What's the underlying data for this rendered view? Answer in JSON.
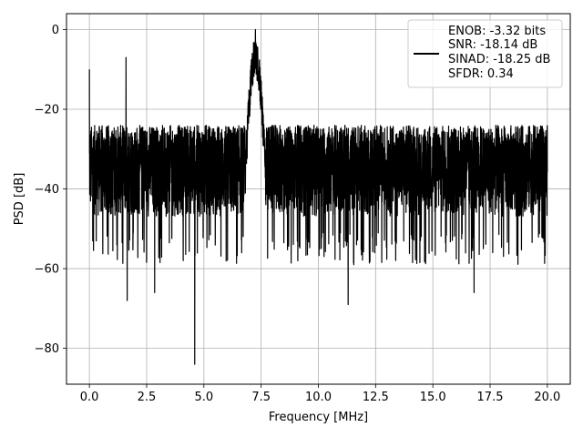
{
  "chart_data": {
    "type": "line",
    "xlabel": "Frequency [MHz]",
    "ylabel": "PSD [dB]",
    "xlim": [
      -1.0,
      21.0
    ],
    "ylim": [
      -89.0,
      4.0
    ],
    "x_ticks": [
      0.0,
      2.5,
      5.0,
      7.5,
      10.0,
      12.5,
      15.0,
      17.5,
      20.0
    ],
    "x_tick_labels": [
      "0.0",
      "2.5",
      "5.0",
      "7.5",
      "10.0",
      "12.5",
      "15.0",
      "17.5",
      "20.0"
    ],
    "y_ticks": [
      0,
      -20,
      -40,
      -60,
      -80
    ],
    "y_tick_labels": [
      "0",
      "−20",
      "−40",
      "−60",
      "−80"
    ],
    "grid": true,
    "legend_position": "upper-right",
    "line_color": "#000000",
    "series": [
      {
        "legend_lines": [
          "ENOB: -3.32 bits",
          "SNR: -18.14 dB",
          "SINAD: -18.25 dB",
          "SFDR: 0.34"
        ],
        "x_range": [
          0.0,
          20.0
        ],
        "noise_floor_db": -35,
        "noise_band_db": [
          -47,
          -24
        ],
        "peaks": [
          {
            "x": 0.0,
            "y": -10
          },
          {
            "x": 1.6,
            "y": -7
          },
          {
            "x": 7.25,
            "y": 0
          }
        ],
        "deep_dips": [
          {
            "x": 1.65,
            "y": -68
          },
          {
            "x": 2.85,
            "y": -66
          },
          {
            "x": 4.6,
            "y": -84
          },
          {
            "x": 11.3,
            "y": -69
          },
          {
            "x": 16.8,
            "y": -66
          }
        ]
      }
    ]
  }
}
